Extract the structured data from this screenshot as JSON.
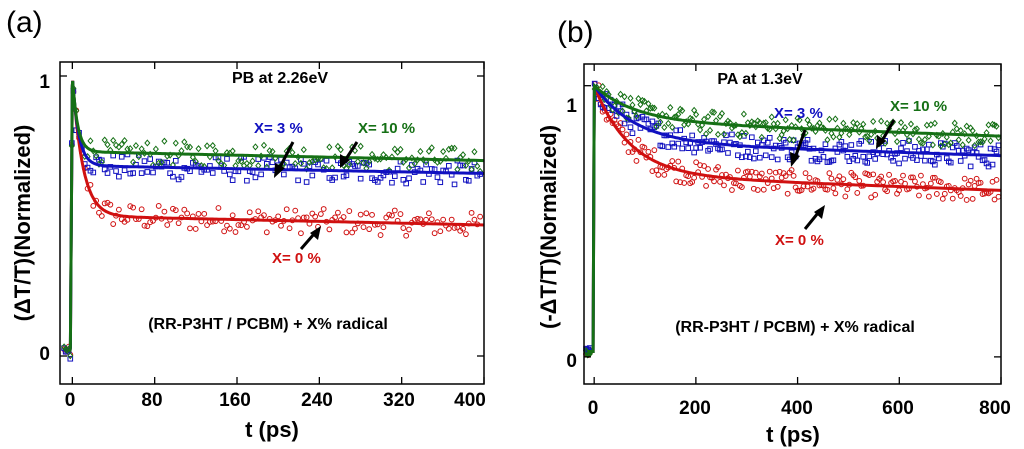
{
  "colors": {
    "red": "#d01010",
    "blue": "#1010c0",
    "green": "#157015",
    "axis": "#000000"
  },
  "chart_data": [
    {
      "type": "scatter",
      "panel_label": "(a)",
      "title": "PB at 2.26eV",
      "xlabel": "t (ps)",
      "ylabel": "(ΔT/T)(Normalized)",
      "xlim": [
        -12,
        400
      ],
      "ylim": [
        -0.1,
        1.05
      ],
      "xticks": [
        0,
        80,
        160,
        240,
        320,
        400
      ],
      "xtick_labels": [
        "0",
        "80",
        "160",
        "240",
        "320",
        "400"
      ],
      "yticks": [
        0,
        1
      ],
      "ytick_labels": [
        "0",
        "1"
      ],
      "caption": "(RR-P3HT / PCBM) + X% radical",
      "series": [
        {
          "name": "X= 0 %",
          "label": "X= 0 %",
          "color_key": "red",
          "marker": "circle",
          "plateau": 0.5,
          "slope": -8e-05,
          "tau": 10,
          "noise": 0.045
        },
        {
          "name": "X= 3 %",
          "label": "X= 3 %",
          "color_key": "blue",
          "marker": "square",
          "plateau": 0.68,
          "slope": -7e-05,
          "tau": 6,
          "noise": 0.045
        },
        {
          "name": "X= 10 %",
          "label": "X= 10 %",
          "color_key": "green",
          "marker": "diamond",
          "plateau": 0.73,
          "slope": -8e-05,
          "tau": 5,
          "noise": 0.045
        }
      ]
    },
    {
      "type": "scatter",
      "panel_label": "(b)",
      "title": "PA at 1.3eV",
      "xlabel": "t (ps)",
      "ylabel": "(-ΔT/T)(Normalized)",
      "xlim": [
        -20,
        800
      ],
      "ylim": [
        -0.1,
        1.08
      ],
      "xticks": [
        0,
        200,
        400,
        600,
        800
      ],
      "xtick_labels": [
        "0",
        "200",
        "400",
        "600",
        "800"
      ],
      "yticks": [
        0,
        1
      ],
      "ytick_labels": [
        "0",
        "1"
      ],
      "caption": "(RR-P3HT / PCBM) + X% radical",
      "series": [
        {
          "name": "X= 0 %",
          "label": "X= 0 %",
          "color_key": "red",
          "marker": "circle",
          "plateau": 0.67,
          "slope": -7e-05,
          "tau": 70,
          "noise": 0.045
        },
        {
          "name": "X= 3 %",
          "label": "X= 3 %",
          "color_key": "blue",
          "marker": "square",
          "plateau": 0.79,
          "slope": -6e-05,
          "tau": 80,
          "noise": 0.045
        },
        {
          "name": "X= 10 %",
          "label": "X= 10 %",
          "color_key": "green",
          "marker": "diamond",
          "plateau": 0.87,
          "slope": -7e-05,
          "tau": 80,
          "noise": 0.045
        }
      ]
    }
  ]
}
